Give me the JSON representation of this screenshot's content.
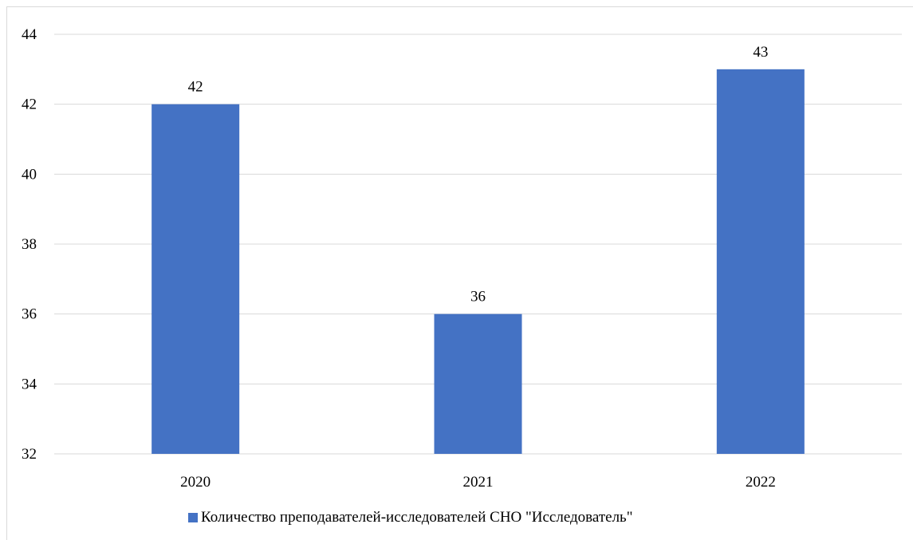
{
  "chart_data": {
    "type": "bar",
    "categories": [
      "2020",
      "2021",
      "2022"
    ],
    "series": [
      {
        "name": "Количество преподавателей-исследователей СНО \"Исследователь\"",
        "values": [
          42,
          36,
          43
        ],
        "color": "#4472c4"
      }
    ],
    "ylim": [
      32,
      44
    ],
    "yticks": [
      "32",
      "34",
      "36",
      "38",
      "40",
      "42",
      "44"
    ],
    "data_labels": [
      "42",
      "36",
      "43"
    ],
    "grid": true,
    "legend_position": "bottom",
    "title": "",
    "xlabel": "",
    "ylabel": ""
  },
  "legend": {
    "label": "Количество преподавателей-исследователей СНО \"Исследователь\""
  }
}
